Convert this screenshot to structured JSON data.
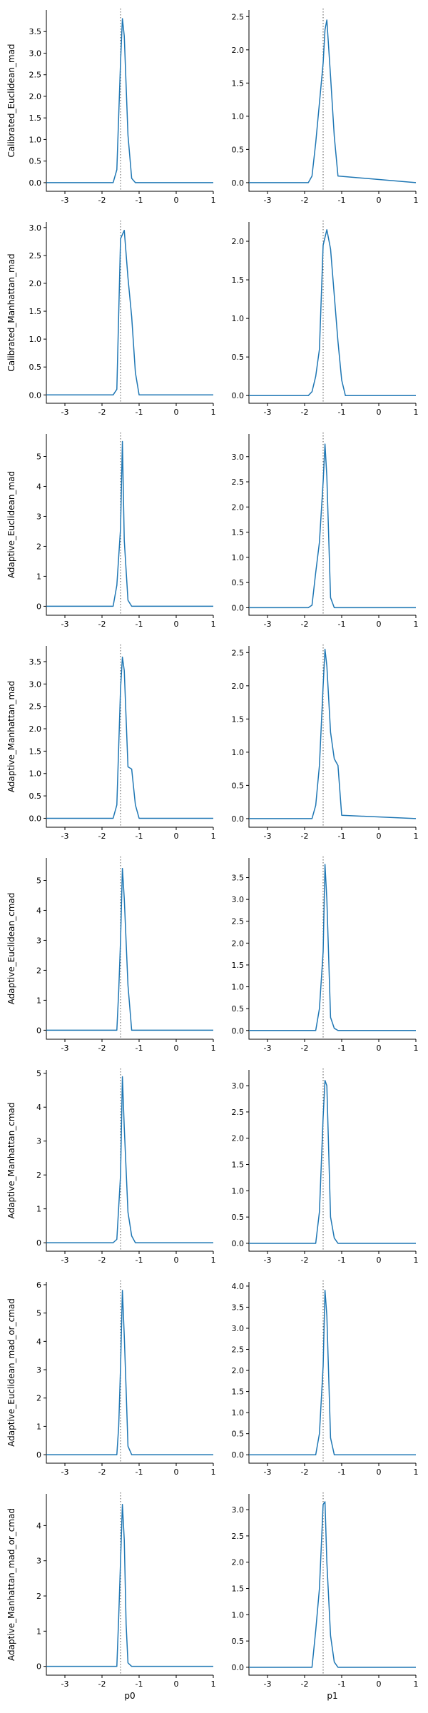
{
  "figure": {
    "series_color": "#1f77b4",
    "ref_line_color": "#555555"
  },
  "chart_data": [
    {
      "type": "line",
      "ylabel": "Calibrated_Euclidean_mad",
      "xlabel": "",
      "xlim": [
        -3.5,
        1
      ],
      "ylim": [
        -0.2,
        4.0
      ],
      "x_ticks": [
        "-3",
        "-2",
        "-1",
        "0",
        "1"
      ],
      "y_ticks": [
        "0.0",
        "0.5",
        "1.0",
        "1.5",
        "2.0",
        "2.5",
        "3.0",
        "3.5"
      ],
      "reference_line_x": -1.5,
      "series": [
        {
          "x": [
            -3.5,
            -1.7,
            -1.6,
            -1.5,
            -1.45,
            -1.4,
            -1.3,
            -1.2,
            -1.1,
            1.0
          ],
          "y": [
            0,
            0,
            0.3,
            2.8,
            3.8,
            3.4,
            1.1,
            0.1,
            0,
            0
          ]
        }
      ]
    },
    {
      "type": "line",
      "ylabel": "",
      "xlabel": "",
      "xlim": [
        -3.5,
        1
      ],
      "ylim": [
        -0.13,
        2.6
      ],
      "x_ticks": [
        "-3",
        "-2",
        "-1",
        "0",
        "1"
      ],
      "y_ticks": [
        "0.0",
        "0.5",
        "1.0",
        "1.5",
        "2.0",
        "2.5"
      ],
      "reference_line_x": -1.5,
      "series": [
        {
          "x": [
            -3.5,
            -1.9,
            -1.8,
            -1.7,
            -1.6,
            -1.5,
            -1.45,
            -1.4,
            -1.3,
            -1.2,
            -1.1,
            1.0
          ],
          "y": [
            0,
            0,
            0.1,
            0.6,
            1.2,
            1.8,
            2.3,
            2.45,
            1.6,
            0.7,
            0.1,
            0
          ]
        }
      ]
    },
    {
      "type": "line",
      "ylabel": "Calibrated_Manhattan_mad",
      "xlabel": "",
      "xlim": [
        -3.5,
        1
      ],
      "ylim": [
        -0.15,
        3.1
      ],
      "x_ticks": [
        "-3",
        "-2",
        "-1",
        "0",
        "1"
      ],
      "y_ticks": [
        "0.0",
        "0.5",
        "1.0",
        "1.5",
        "2.0",
        "2.5",
        "3.0"
      ],
      "reference_line_x": -1.5,
      "series": [
        {
          "x": [
            -3.5,
            -1.7,
            -1.6,
            -1.5,
            -1.4,
            -1.3,
            -1.2,
            -1.1,
            -1.0,
            1.0
          ],
          "y": [
            0,
            0,
            0.1,
            2.8,
            2.95,
            2.1,
            1.4,
            0.4,
            0,
            0
          ]
        }
      ]
    },
    {
      "type": "line",
      "ylabel": "",
      "xlabel": "",
      "xlim": [
        -3.5,
        1
      ],
      "ylim": [
        -0.1,
        2.25
      ],
      "x_ticks": [
        "-3",
        "-2",
        "-1",
        "0",
        "1"
      ],
      "y_ticks": [
        "0.0",
        "0.5",
        "1.0",
        "1.5",
        "2.0"
      ],
      "reference_line_x": -1.5,
      "series": [
        {
          "x": [
            -3.5,
            -1.9,
            -1.8,
            -1.7,
            -1.6,
            -1.5,
            -1.4,
            -1.3,
            -1.2,
            -1.1,
            -1.0,
            -0.9,
            1.0
          ],
          "y": [
            0,
            0,
            0.05,
            0.25,
            0.6,
            1.95,
            2.15,
            1.9,
            1.3,
            0.7,
            0.2,
            0,
            0
          ]
        }
      ]
    },
    {
      "type": "line",
      "ylabel": "Adaptive_Euclidean_mad",
      "xlabel": "",
      "xlim": [
        -3.5,
        1
      ],
      "ylim": [
        -0.3,
        5.75
      ],
      "x_ticks": [
        "-3",
        "-2",
        "-1",
        "0",
        "1"
      ],
      "y_ticks": [
        "0",
        "1",
        "2",
        "3",
        "4",
        "5"
      ],
      "reference_line_x": -1.5,
      "series": [
        {
          "x": [
            -3.5,
            -1.7,
            -1.6,
            -1.5,
            -1.45,
            -1.4,
            -1.3,
            -1.2,
            1.0
          ],
          "y": [
            0,
            0,
            0.7,
            2.6,
            5.5,
            2.2,
            0.2,
            0,
            0
          ]
        }
      ]
    },
    {
      "type": "line",
      "ylabel": "",
      "xlabel": "",
      "xlim": [
        -3.5,
        1
      ],
      "ylim": [
        -0.15,
        3.45
      ],
      "x_ticks": [
        "-3",
        "-2",
        "-1",
        "0",
        "1"
      ],
      "y_ticks": [
        "0.0",
        "0.5",
        "1.0",
        "1.5",
        "2.0",
        "2.5",
        "3.0"
      ],
      "reference_line_x": -1.5,
      "series": [
        {
          "x": [
            -3.5,
            -1.9,
            -1.8,
            -1.7,
            -1.6,
            -1.5,
            -1.45,
            -1.4,
            -1.3,
            -1.2,
            1.0
          ],
          "y": [
            0,
            0,
            0.05,
            0.7,
            1.3,
            2.5,
            3.25,
            2.6,
            0.2,
            0,
            0
          ]
        }
      ]
    },
    {
      "type": "line",
      "ylabel": "Adaptive_Manhattan_mad",
      "xlabel": "",
      "xlim": [
        -3.5,
        1
      ],
      "ylim": [
        -0.2,
        3.85
      ],
      "x_ticks": [
        "-3",
        "-2",
        "-1",
        "0",
        "1"
      ],
      "y_ticks": [
        "0.0",
        "0.5",
        "1.0",
        "1.5",
        "2.0",
        "2.5",
        "3.0",
        "3.5"
      ],
      "reference_line_x": -1.5,
      "series": [
        {
          "x": [
            -3.5,
            -1.7,
            -1.6,
            -1.5,
            -1.45,
            -1.4,
            -1.3,
            -1.2,
            -1.1,
            -1.0,
            1.0
          ],
          "y": [
            0,
            0,
            0.3,
            2.9,
            3.6,
            3.3,
            1.15,
            1.1,
            0.3,
            0,
            0
          ]
        }
      ]
    },
    {
      "type": "line",
      "ylabel": "",
      "xlabel": "",
      "xlim": [
        -3.5,
        1
      ],
      "ylim": [
        -0.13,
        2.6
      ],
      "x_ticks": [
        "-3",
        "-2",
        "-1",
        "0",
        "1"
      ],
      "y_ticks": [
        "0.0",
        "0.5",
        "1.0",
        "1.5",
        "2.0",
        "2.5"
      ],
      "reference_line_x": -1.5,
      "series": [
        {
          "x": [
            -3.5,
            -1.8,
            -1.7,
            -1.6,
            -1.5,
            -1.45,
            -1.4,
            -1.3,
            -1.2,
            -1.1,
            -1.0,
            1.0
          ],
          "y": [
            0,
            0,
            0.2,
            0.8,
            2.0,
            2.55,
            2.3,
            1.3,
            0.9,
            0.8,
            0.05,
            0
          ]
        }
      ]
    },
    {
      "type": "line",
      "ylabel": "Adaptive_Euclidean_cmad",
      "xlabel": "",
      "xlim": [
        -3.5,
        1
      ],
      "ylim": [
        -0.3,
        5.75
      ],
      "x_ticks": [
        "-3",
        "-2",
        "-1",
        "0",
        "1"
      ],
      "y_ticks": [
        "0",
        "1",
        "2",
        "3",
        "4",
        "5"
      ],
      "reference_line_x": -1.5,
      "series": [
        {
          "x": [
            -3.5,
            -1.6,
            -1.55,
            -1.5,
            -1.45,
            -1.4,
            -1.3,
            -1.2,
            1.0
          ],
          "y": [
            0,
            0,
            1.3,
            3.0,
            5.4,
            4.4,
            1.5,
            0,
            0
          ]
        }
      ]
    },
    {
      "type": "line",
      "ylabel": "",
      "xlabel": "",
      "xlim": [
        -3.5,
        1
      ],
      "ylim": [
        -0.2,
        3.95
      ],
      "x_ticks": [
        "-3",
        "-2",
        "-1",
        "0",
        "1"
      ],
      "y_ticks": [
        "0.0",
        "0.5",
        "1.0",
        "1.5",
        "2.0",
        "2.5",
        "3.0",
        "3.5"
      ],
      "reference_line_x": -1.5,
      "series": [
        {
          "x": [
            -3.5,
            -1.7,
            -1.6,
            -1.5,
            -1.45,
            -1.4,
            -1.3,
            -1.2,
            -1.1,
            1.0
          ],
          "y": [
            0,
            0,
            0.5,
            1.8,
            3.8,
            3.0,
            0.3,
            0.05,
            0,
            0
          ]
        }
      ]
    },
    {
      "type": "line",
      "ylabel": "Adaptive_Manhattan_cmad",
      "xlabel": "",
      "xlim": [
        -3.5,
        1
      ],
      "ylim": [
        -0.25,
        5.1
      ],
      "x_ticks": [
        "-3",
        "-2",
        "-1",
        "0",
        "1"
      ],
      "y_ticks": [
        "0",
        "1",
        "2",
        "3",
        "4",
        "5"
      ],
      "reference_line_x": -1.5,
      "series": [
        {
          "x": [
            -3.5,
            -1.7,
            -1.6,
            -1.5,
            -1.45,
            -1.4,
            -1.3,
            -1.2,
            -1.1,
            1.0
          ],
          "y": [
            0,
            0,
            0.1,
            2.0,
            4.9,
            3.4,
            0.9,
            0.2,
            0,
            0
          ]
        }
      ]
    },
    {
      "type": "line",
      "ylabel": "",
      "xlabel": "",
      "xlim": [
        -3.5,
        1
      ],
      "ylim": [
        -0.15,
        3.3
      ],
      "x_ticks": [
        "-3",
        "-2",
        "-1",
        "0",
        "1"
      ],
      "y_ticks": [
        "0.0",
        "0.5",
        "1.0",
        "1.5",
        "2.0",
        "2.5",
        "3.0"
      ],
      "reference_line_x": -1.5,
      "series": [
        {
          "x": [
            -3.5,
            -1.7,
            -1.6,
            -1.5,
            -1.45,
            -1.4,
            -1.3,
            -1.2,
            -1.1,
            1.0
          ],
          "y": [
            0,
            0,
            0.6,
            2.4,
            3.1,
            3.0,
            0.5,
            0.1,
            0,
            0
          ]
        }
      ]
    },
    {
      "type": "line",
      "ylabel": "Adaptive_Euclidean_mad_or_cmad",
      "xlabel": "",
      "xlim": [
        -3.5,
        1
      ],
      "ylim": [
        -0.3,
        6.1
      ],
      "x_ticks": [
        "-3",
        "-2",
        "-1",
        "0",
        "1"
      ],
      "y_ticks": [
        "0",
        "1",
        "2",
        "3",
        "4",
        "5",
        "6"
      ],
      "reference_line_x": -1.5,
      "series": [
        {
          "x": [
            -3.5,
            -1.6,
            -1.55,
            -1.5,
            -1.45,
            -1.4,
            -1.35,
            -1.3,
            -1.2,
            1.0
          ],
          "y": [
            0,
            0,
            1.0,
            3.1,
            5.8,
            4.2,
            2.3,
            0.3,
            0,
            0
          ]
        }
      ]
    },
    {
      "type": "line",
      "ylabel": "",
      "xlabel": "",
      "xlim": [
        -3.5,
        1
      ],
      "ylim": [
        -0.2,
        4.1
      ],
      "x_ticks": [
        "-3",
        "-2",
        "-1",
        "0",
        "1"
      ],
      "y_ticks": [
        "0.0",
        "0.5",
        "1.0",
        "1.5",
        "2.0",
        "2.5",
        "3.0",
        "3.5",
        "4.0"
      ],
      "reference_line_x": -1.5,
      "series": [
        {
          "x": [
            -3.5,
            -1.7,
            -1.6,
            -1.5,
            -1.45,
            -1.4,
            -1.3,
            -1.2,
            -1.1,
            1.0
          ],
          "y": [
            0,
            0,
            0.5,
            2.1,
            3.9,
            3.3,
            0.4,
            0,
            0,
            0
          ]
        }
      ]
    },
    {
      "type": "line",
      "ylabel": "Adaptive_Manhattan_mad_or_cmad",
      "xlabel": "p0",
      "xlim": [
        -3.5,
        1
      ],
      "ylim": [
        -0.25,
        4.9
      ],
      "x_ticks": [
        "-3",
        "-2",
        "-1",
        "0",
        "1"
      ],
      "y_ticks": [
        "0",
        "1",
        "2",
        "3",
        "4"
      ],
      "reference_line_x": -1.5,
      "series": [
        {
          "x": [
            -3.5,
            -1.6,
            -1.55,
            -1.5,
            -1.45,
            -1.4,
            -1.35,
            -1.3,
            -1.2,
            1.0
          ],
          "y": [
            0,
            0,
            1.4,
            3.0,
            4.6,
            3.6,
            1.2,
            0.1,
            0,
            0
          ]
        }
      ]
    },
    {
      "type": "line",
      "ylabel": "",
      "xlabel": "p1",
      "xlim": [
        -3.5,
        1
      ],
      "ylim": [
        -0.15,
        3.3
      ],
      "x_ticks": [
        "-3",
        "-2",
        "-1",
        "0",
        "1"
      ],
      "y_ticks": [
        "0.0",
        "0.5",
        "1.0",
        "1.5",
        "2.0",
        "2.5",
        "3.0"
      ],
      "reference_line_x": -1.5,
      "series": [
        {
          "x": [
            -3.5,
            -1.8,
            -1.7,
            -1.6,
            -1.5,
            -1.45,
            -1.4,
            -1.3,
            -1.2,
            -1.1,
            1.0
          ],
          "y": [
            0,
            0,
            0.7,
            1.5,
            3.1,
            3.15,
            2.0,
            0.6,
            0.1,
            0,
            0
          ]
        }
      ]
    }
  ]
}
